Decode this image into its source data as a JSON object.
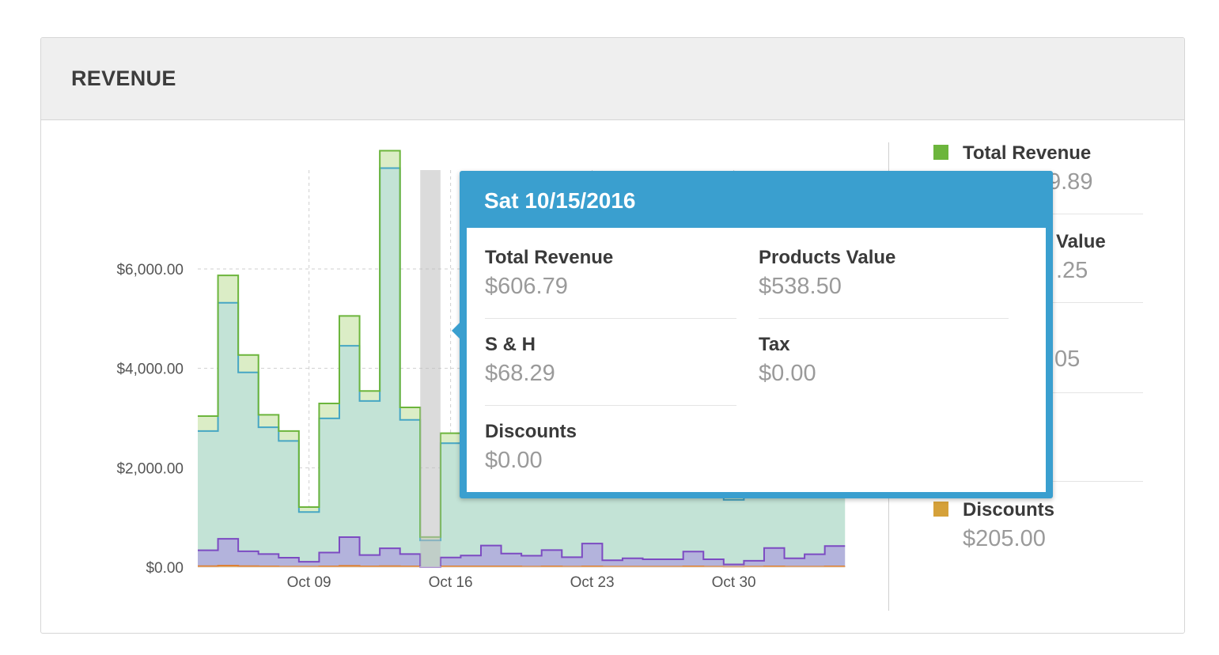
{
  "panel": {
    "title": "REVENUE"
  },
  "chart_data": {
    "type": "area",
    "subtype": "stacked-step",
    "y_ticks": [
      "$0.00",
      "$2,000.00",
      "$4,000.00",
      "$6,000.00"
    ],
    "y_tick_values": [
      0,
      2000,
      4000,
      6000
    ],
    "ylim": [
      0,
      8000
    ],
    "x_tick_labels": [
      "Oct 09",
      "Oct 16",
      "Oct 23",
      "Oct 30"
    ],
    "x_tick_days": [
      9,
      16,
      23,
      30
    ],
    "x_days": [
      4,
      5,
      6,
      7,
      8,
      9,
      10,
      11,
      12,
      13,
      14,
      15,
      16,
      17,
      18,
      19,
      20,
      21,
      22,
      23,
      24,
      25,
      26,
      27,
      28,
      29,
      30,
      31,
      32,
      33,
      34,
      35
    ],
    "series": [
      {
        "name": "Products Value",
        "color": "#46a6c4",
        "fill": "#c3e3d6",
        "values": [
          2400,
          4750,
          3600,
          2550,
          2350,
          1000,
          2700,
          3850,
          3100,
          7650,
          2700,
          538.5,
          2300,
          2200,
          2100,
          2000,
          1900,
          2000,
          2100,
          2200,
          2000,
          2050,
          1900,
          1800,
          1700,
          1600,
          1300,
          1400,
          1500,
          1600,
          1500,
          1500
        ]
      },
      {
        "name": "S & H",
        "color": "#6cb53c",
        "fill": "#dbedc6",
        "values": [
          300,
          550,
          350,
          250,
          200,
          100,
          300,
          600,
          200,
          350,
          250,
          68.29,
          200,
          150,
          150,
          140,
          130,
          150,
          160,
          170,
          150,
          150,
          140,
          130,
          120,
          110,
          80,
          100,
          110,
          120,
          110,
          110
        ]
      },
      {
        "name": "Tax",
        "color": "#7c4bc2",
        "fill": "#b3b3dc",
        "values": [
          320,
          540,
          300,
          250,
          180,
          100,
          280,
          580,
          230,
          360,
          250,
          0,
          180,
          220,
          420,
          260,
          220,
          330,
          190,
          460,
          130,
          170,
          150,
          150,
          300,
          150,
          50,
          120,
          370,
          170,
          250,
          410
        ]
      },
      {
        "name": "Discounts",
        "color": "#e07e2a",
        "fill": "#e6b24a",
        "values": [
          20,
          30,
          20,
          15,
          10,
          10,
          15,
          25,
          15,
          20,
          15,
          0,
          15,
          15,
          15,
          15,
          10,
          15,
          10,
          15,
          10,
          10,
          10,
          10,
          15,
          10,
          5,
          10,
          15,
          10,
          10,
          15
        ]
      }
    ],
    "highlight_day": 15,
    "grid": true,
    "legend_position": "right"
  },
  "legend": {
    "items": [
      {
        "label": "Total Revenue",
        "value": "9.89",
        "color": "#6cb53c"
      },
      {
        "label": "Value",
        "value": ".25",
        "color": "#46a6c4"
      },
      {
        "label": "",
        "value": "05",
        "color": "#7c4bc2"
      },
      {
        "label": "",
        "value": "",
        "color": "#7c4bc2"
      },
      {
        "label": "Discounts",
        "value": "$205.00",
        "color": "#d5a13a"
      }
    ]
  },
  "tooltip": {
    "title": "Sat 10/15/2016",
    "fields": [
      {
        "label": "Total Revenue",
        "value": "$606.79"
      },
      {
        "label": "Products Value",
        "value": "$538.50"
      },
      {
        "label": "S & H",
        "value": "$68.29"
      },
      {
        "label": "Tax",
        "value": "$0.00"
      },
      {
        "label": "Discounts",
        "value": "$0.00"
      }
    ]
  }
}
